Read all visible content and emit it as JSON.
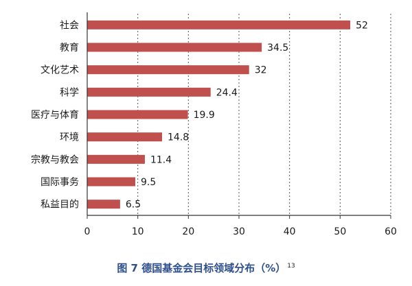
{
  "chart_data": {
    "type": "bar",
    "orientation": "horizontal",
    "categories": [
      "社会",
      "教育",
      "文化艺术",
      "科学",
      "医疗与体育",
      "环境",
      "宗教与教会",
      "国际事务",
      "私益目的"
    ],
    "values": [
      52,
      34.5,
      32,
      24.4,
      19.9,
      14.8,
      11.4,
      9.5,
      6.5
    ],
    "value_labels": [
      "52",
      "34.5",
      "32",
      "24.4",
      "19.9",
      "14.8",
      "11.4",
      "9.5",
      "6.5"
    ],
    "xlim": [
      0,
      60
    ],
    "xticks": [
      0,
      10,
      20,
      30,
      40,
      50,
      60
    ],
    "grid": "vertical-dashed",
    "bar_color": "#c0504d",
    "title": "图 7  德国基金会目标领域分布（%）",
    "title_superscript": "13"
  }
}
